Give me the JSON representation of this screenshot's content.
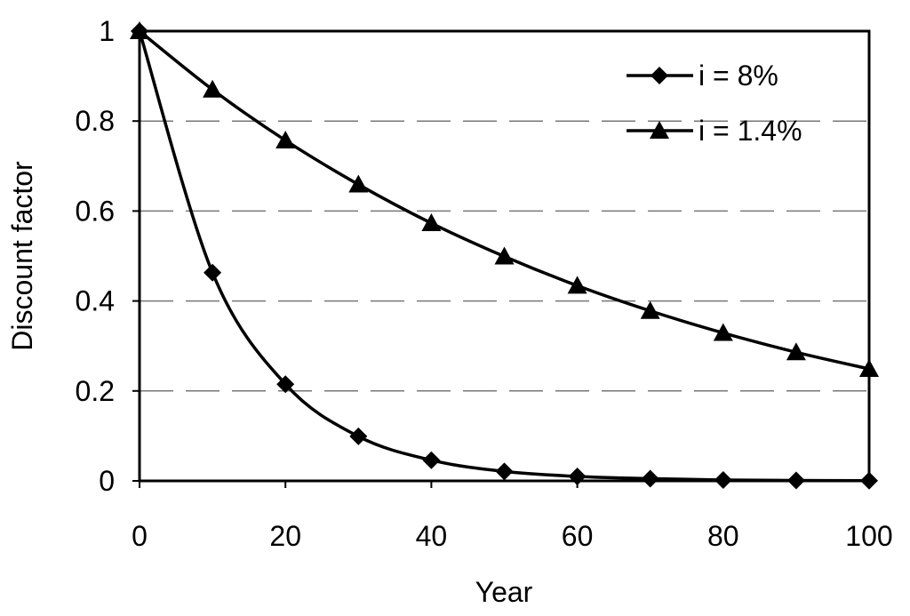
{
  "chart_data": {
    "type": "line",
    "title": "",
    "xlabel": "Year",
    "ylabel": "Discount factor",
    "xlim": [
      0,
      100
    ],
    "ylim": [
      0,
      1
    ],
    "grid": "horizontal dashed",
    "legend_placement": "top-right",
    "x": [
      0,
      10,
      20,
      30,
      40,
      50,
      60,
      70,
      80,
      90,
      100
    ],
    "xticks": [
      "0",
      "20",
      "40",
      "60",
      "80",
      "100"
    ],
    "xtick_values": [
      0,
      20,
      40,
      60,
      80,
      100
    ],
    "yticks": [
      "0",
      "0.2",
      "0.4",
      "0.6",
      "0.8",
      "1"
    ],
    "ytick_values": [
      0,
      0.2,
      0.4,
      0.6,
      0.8,
      1
    ],
    "series": [
      {
        "name": "i = 8%",
        "marker": "diamond",
        "color": "#000000",
        "values": [
          1,
          0.463,
          0.215,
          0.099,
          0.046,
          0.021,
          0.01,
          0.005,
          0.002,
          0.001,
          0.0005
        ]
      },
      {
        "name": "i = 1.4%",
        "marker": "triangle",
        "color": "#000000",
        "values": [
          1,
          0.87,
          0.757,
          0.659,
          0.573,
          0.499,
          0.434,
          0.378,
          0.329,
          0.286,
          0.249
        ]
      }
    ]
  }
}
